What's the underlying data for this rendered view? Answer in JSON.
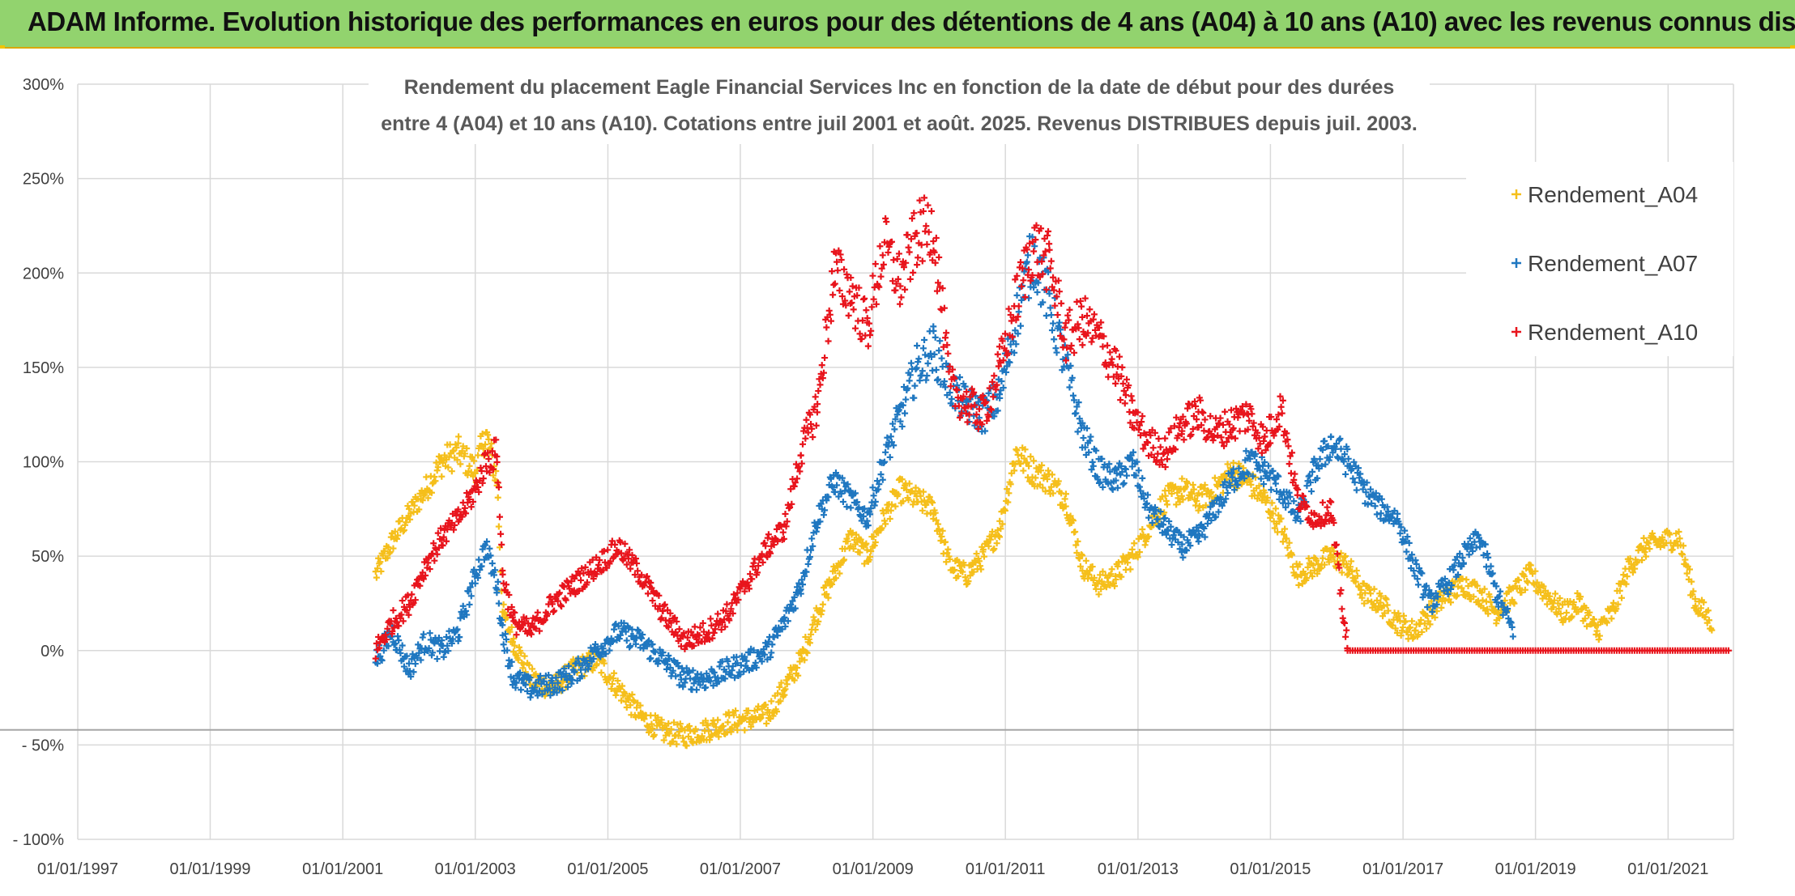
{
  "header": {
    "title": "ADAM Informe. Evolution historique des performances en euros pour des détentions de 4 ans (A04) à 10 ans (A10) avec les revenus connus distribués"
  },
  "colors": {
    "header_bg": "#92d36e",
    "header_border": "#d9a800",
    "A04": "#f5bf1b",
    "A07": "#1f77c0",
    "A10": "#e8141c",
    "grid": "#d9d9d9"
  },
  "chart_data": {
    "type": "scatter",
    "title_line1": "Rendement du placement Eagle Financial Services Inc en fonction de la date de début pour des durées",
    "title_line2": "entre 4 (A04) et 10 ans (A10). Cotations entre juil 2001 et août. 2025. Revenus DISTRIBUES depuis juil. 2003.",
    "ylim": [
      -100,
      300
    ],
    "yticks": [
      300,
      250,
      200,
      150,
      100,
      50,
      0,
      -50,
      -100
    ],
    "ytick_labels": [
      "300%",
      "250%",
      "200%",
      "150%",
      "100%",
      "50%",
      "0%",
      "- 50%",
      "- 100%"
    ],
    "xlim": [
      "1997-01-01",
      "2021-12-01"
    ],
    "xticks": [
      "1997-01-01",
      "1999-01-01",
      "2001-01-01",
      "2003-01-01",
      "2005-01-01",
      "2007-01-01",
      "2009-01-01",
      "2011-01-01",
      "2013-01-01",
      "2015-01-01",
      "2017-01-01",
      "2019-01-01",
      "2021-01-01"
    ],
    "xtick_labels": [
      "01/01/1997",
      "01/01/1999",
      "01/01/2001",
      "01/01/2003",
      "01/01/2005",
      "01/01/2007",
      "01/01/2009",
      "01/01/2011",
      "01/01/2013",
      "01/01/2015",
      "01/01/2017",
      "01/01/2019",
      "01/01/2021"
    ],
    "legend_position": "top-right",
    "grid": true,
    "reference_line_y": -42,
    "marker": "+",
    "series": [
      {
        "name": "Rendement_A04",
        "color": "#f5bf1b",
        "points": [
          [
            "2001-07-01",
            40
          ],
          [
            "2001-10-01",
            58
          ],
          [
            "2002-01-01",
            72
          ],
          [
            "2002-04-01",
            85
          ],
          [
            "2002-07-01",
            100
          ],
          [
            "2002-10-01",
            105
          ],
          [
            "2003-01-01",
            95
          ],
          [
            "2003-03-01",
            115
          ],
          [
            "2003-05-01",
            90
          ],
          [
            "2003-06-01",
            20
          ],
          [
            "2003-08-01",
            5
          ],
          [
            "2003-11-01",
            -15
          ],
          [
            "2004-03-01",
            -20
          ],
          [
            "2004-07-01",
            -10
          ],
          [
            "2004-11-01",
            -5
          ],
          [
            "2005-03-01",
            -20
          ],
          [
            "2005-07-01",
            -35
          ],
          [
            "2005-11-01",
            -43
          ],
          [
            "2006-03-01",
            -45
          ],
          [
            "2006-07-01",
            -42
          ],
          [
            "2006-11-01",
            -38
          ],
          [
            "2007-03-01",
            -36
          ],
          [
            "2007-06-01",
            -34
          ],
          [
            "2007-09-01",
            -20
          ],
          [
            "2007-12-01",
            -5
          ],
          [
            "2008-03-01",
            20
          ],
          [
            "2008-06-01",
            40
          ],
          [
            "2008-09-01",
            60
          ],
          [
            "2008-12-01",
            50
          ],
          [
            "2009-03-01",
            70
          ],
          [
            "2009-06-01",
            85
          ],
          [
            "2009-09-01",
            80
          ],
          [
            "2009-12-01",
            75
          ],
          [
            "2010-03-01",
            45
          ],
          [
            "2010-06-01",
            40
          ],
          [
            "2010-09-01",
            50
          ],
          [
            "2010-12-01",
            65
          ],
          [
            "2011-03-01",
            105
          ],
          [
            "2011-06-01",
            95
          ],
          [
            "2011-09-01",
            90
          ],
          [
            "2011-12-01",
            80
          ],
          [
            "2012-03-01",
            45
          ],
          [
            "2012-06-01",
            35
          ],
          [
            "2012-09-01",
            40
          ],
          [
            "2012-12-01",
            50
          ],
          [
            "2013-03-01",
            65
          ],
          [
            "2013-06-01",
            80
          ],
          [
            "2013-09-01",
            85
          ],
          [
            "2013-12-01",
            80
          ],
          [
            "2014-03-01",
            85
          ],
          [
            "2014-06-01",
            95
          ],
          [
            "2014-09-01",
            90
          ],
          [
            "2014-12-01",
            80
          ],
          [
            "2015-03-01",
            65
          ],
          [
            "2015-06-01",
            40
          ],
          [
            "2015-09-01",
            45
          ],
          [
            "2015-12-01",
            50
          ],
          [
            "2016-03-01",
            45
          ],
          [
            "2016-06-01",
            30
          ],
          [
            "2016-09-01",
            25
          ],
          [
            "2016-12-01",
            15
          ],
          [
            "2017-03-01",
            10
          ],
          [
            "2017-06-01",
            20
          ],
          [
            "2017-09-01",
            30
          ],
          [
            "2017-12-01",
            35
          ],
          [
            "2018-03-01",
            30
          ],
          [
            "2018-06-01",
            20
          ],
          [
            "2018-09-01",
            30
          ],
          [
            "2018-12-01",
            40
          ],
          [
            "2019-03-01",
            30
          ],
          [
            "2019-06-01",
            20
          ],
          [
            "2019-09-01",
            25
          ],
          [
            "2019-12-01",
            10
          ],
          [
            "2020-03-01",
            20
          ],
          [
            "2020-06-01",
            45
          ],
          [
            "2020-09-01",
            55
          ],
          [
            "2020-12-01",
            58
          ],
          [
            "2021-03-01",
            60
          ],
          [
            "2021-06-01",
            25
          ],
          [
            "2021-09-01",
            15
          ]
        ]
      },
      {
        "name": "Rendement_A07",
        "color": "#1f77c0",
        "points": [
          [
            "2001-07-01",
            -5
          ],
          [
            "2001-10-01",
            10
          ],
          [
            "2002-01-01",
            -10
          ],
          [
            "2002-04-01",
            5
          ],
          [
            "2002-07-01",
            0
          ],
          [
            "2002-10-01",
            10
          ],
          [
            "2003-01-01",
            40
          ],
          [
            "2003-03-01",
            55
          ],
          [
            "2003-05-01",
            35
          ],
          [
            "2003-06-01",
            10
          ],
          [
            "2003-08-01",
            -15
          ],
          [
            "2003-11-01",
            -20
          ],
          [
            "2004-03-01",
            -18
          ],
          [
            "2004-07-01",
            -12
          ],
          [
            "2004-11-01",
            0
          ],
          [
            "2005-03-01",
            10
          ],
          [
            "2005-07-01",
            5
          ],
          [
            "2005-11-01",
            -5
          ],
          [
            "2006-03-01",
            -15
          ],
          [
            "2006-07-01",
            -15
          ],
          [
            "2006-11-01",
            -10
          ],
          [
            "2007-03-01",
            -5
          ],
          [
            "2007-06-01",
            0
          ],
          [
            "2007-09-01",
            15
          ],
          [
            "2007-12-01",
            35
          ],
          [
            "2008-03-01",
            70
          ],
          [
            "2008-06-01",
            90
          ],
          [
            "2008-09-01",
            80
          ],
          [
            "2008-12-01",
            70
          ],
          [
            "2009-03-01",
            100
          ],
          [
            "2009-06-01",
            125
          ],
          [
            "2009-09-01",
            150
          ],
          [
            "2009-12-01",
            160
          ],
          [
            "2010-03-01",
            140
          ],
          [
            "2010-06-01",
            130
          ],
          [
            "2010-09-01",
            125
          ],
          [
            "2010-12-01",
            135
          ],
          [
            "2011-03-01",
            175
          ],
          [
            "2011-06-01",
            210
          ],
          [
            "2011-09-01",
            185
          ],
          [
            "2011-12-01",
            150
          ],
          [
            "2012-03-01",
            115
          ],
          [
            "2012-06-01",
            95
          ],
          [
            "2012-09-01",
            90
          ],
          [
            "2012-12-01",
            100
          ],
          [
            "2013-03-01",
            75
          ],
          [
            "2013-06-01",
            65
          ],
          [
            "2013-09-01",
            55
          ],
          [
            "2013-12-01",
            60
          ],
          [
            "2014-03-01",
            75
          ],
          [
            "2014-06-01",
            90
          ],
          [
            "2014-09-01",
            100
          ],
          [
            "2014-12-01",
            95
          ],
          [
            "2015-03-01",
            85
          ],
          [
            "2015-06-01",
            70
          ],
          [
            "2015-09-01",
            95
          ],
          [
            "2015-12-01",
            110
          ],
          [
            "2016-03-01",
            100
          ],
          [
            "2016-06-01",
            85
          ],
          [
            "2016-09-01",
            75
          ],
          [
            "2016-12-01",
            70
          ],
          [
            "2017-03-01",
            45
          ],
          [
            "2017-06-01",
            25
          ],
          [
            "2017-09-01",
            35
          ],
          [
            "2017-12-01",
            50
          ],
          [
            "2018-03-01",
            60
          ],
          [
            "2018-06-01",
            30
          ],
          [
            "2018-09-01",
            10
          ]
        ]
      },
      {
        "name": "Rendement_A10",
        "color": "#e8141c",
        "points": [
          [
            "2001-07-01",
            0
          ],
          [
            "2001-10-01",
            15
          ],
          [
            "2002-01-01",
            25
          ],
          [
            "2002-04-01",
            45
          ],
          [
            "2002-07-01",
            60
          ],
          [
            "2002-10-01",
            70
          ],
          [
            "2003-01-01",
            85
          ],
          [
            "2003-03-01",
            100
          ],
          [
            "2003-05-01",
            105
          ],
          [
            "2003-06-01",
            40
          ],
          [
            "2003-08-01",
            15
          ],
          [
            "2003-11-01",
            10
          ],
          [
            "2004-03-01",
            25
          ],
          [
            "2004-07-01",
            35
          ],
          [
            "2004-11-01",
            45
          ],
          [
            "2005-03-01",
            55
          ],
          [
            "2005-07-01",
            40
          ],
          [
            "2005-11-01",
            20
          ],
          [
            "2006-03-01",
            5
          ],
          [
            "2006-07-01",
            10
          ],
          [
            "2006-11-01",
            20
          ],
          [
            "2007-03-01",
            40
          ],
          [
            "2007-06-01",
            55
          ],
          [
            "2007-09-01",
            65
          ],
          [
            "2007-12-01",
            105
          ],
          [
            "2008-03-01",
            130
          ],
          [
            "2008-06-01",
            200
          ],
          [
            "2008-09-01",
            190
          ],
          [
            "2008-12-01",
            170
          ],
          [
            "2009-03-01",
            215
          ],
          [
            "2009-06-01",
            195
          ],
          [
            "2009-09-01",
            220
          ],
          [
            "2009-12-01",
            225
          ],
          [
            "2010-03-01",
            140
          ],
          [
            "2010-06-01",
            130
          ],
          [
            "2010-09-01",
            125
          ],
          [
            "2010-12-01",
            150
          ],
          [
            "2011-03-01",
            185
          ],
          [
            "2011-06-01",
            215
          ],
          [
            "2011-09-01",
            205
          ],
          [
            "2011-12-01",
            165
          ],
          [
            "2012-03-01",
            175
          ],
          [
            "2012-06-01",
            165
          ],
          [
            "2012-09-01",
            150
          ],
          [
            "2012-12-01",
            125
          ],
          [
            "2013-03-01",
            110
          ],
          [
            "2013-06-01",
            105
          ],
          [
            "2013-09-01",
            120
          ],
          [
            "2013-12-01",
            125
          ],
          [
            "2014-03-01",
            115
          ],
          [
            "2014-06-01",
            120
          ],
          [
            "2014-09-01",
            125
          ],
          [
            "2014-12-01",
            110
          ],
          [
            "2015-03-01",
            130
          ],
          [
            "2015-06-01",
            80
          ],
          [
            "2015-09-01",
            70
          ],
          [
            "2015-12-01",
            75
          ],
          [
            "2016-03-01",
            0
          ],
          [
            "2021-12-01",
            0
          ]
        ]
      }
    ]
  }
}
